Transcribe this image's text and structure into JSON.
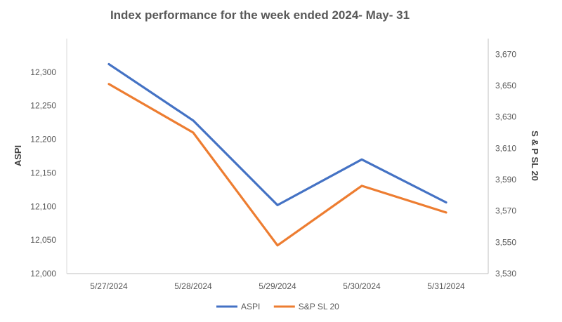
{
  "chart_data": {
    "type": "line",
    "title": "Index performance for the week ended 2024- May- 31",
    "categories": [
      "5/27/2024",
      "5/28/2024",
      "5/29/2024",
      "5/30/2024",
      "5/31/2024"
    ],
    "ylabel_left": "ASPI",
    "ylabel_right": "S & P SL 20",
    "ylim_left": [
      12000,
      12350
    ],
    "ylim_right": [
      3530,
      3680
    ],
    "yticks_left": [
      "12,000",
      "12,050",
      "12,100",
      "12,150",
      "12,200",
      "12,250",
      "12,300"
    ],
    "yticks_right": [
      "3,530",
      "3,550",
      "3,570",
      "3,590",
      "3,610",
      "3,630",
      "3,650",
      "3,670"
    ],
    "grid": false,
    "legend_position": "bottom",
    "series": [
      {
        "name": "ASPI",
        "axis": "left",
        "color": "#4472C4",
        "values": [
          12312,
          12228,
          12102,
          12170,
          12106
        ]
      },
      {
        "name": "S&P SL 20",
        "axis": "right",
        "color": "#ED7D31",
        "values": [
          3651,
          3620,
          3548,
          3586,
          3569
        ]
      }
    ]
  }
}
